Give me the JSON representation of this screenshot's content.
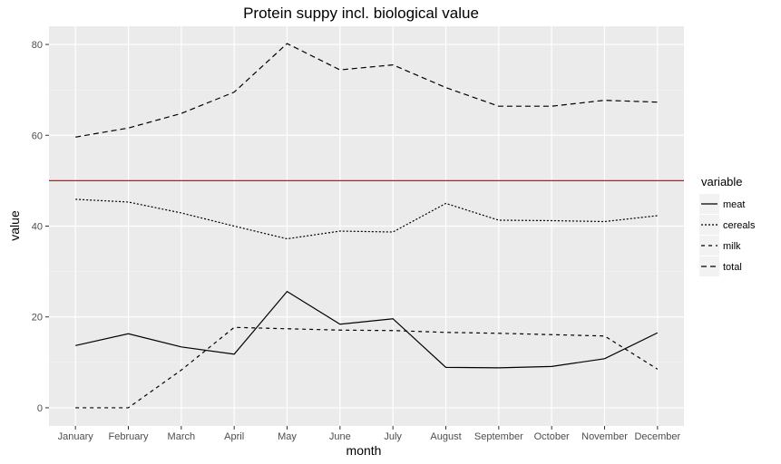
{
  "chart_data": {
    "type": "line",
    "title": "Protein suppy incl. biological value",
    "xlabel": "month",
    "ylabel": "value",
    "categories": [
      "January",
      "February",
      "March",
      "April",
      "May",
      "June",
      "July",
      "August",
      "September",
      "October",
      "November",
      "December"
    ],
    "ylim": [
      -4,
      84
    ],
    "yticks": [
      0,
      20,
      40,
      60,
      80
    ],
    "grid": true,
    "legend": {
      "title": "variable",
      "position": "right"
    },
    "reference_line": {
      "y": 50,
      "color": "#ff0000"
    },
    "series": [
      {
        "name": "meat",
        "dash": "solid",
        "values": [
          13.7,
          16.3,
          13.4,
          11.8,
          25.6,
          18.4,
          19.6,
          8.9,
          8.8,
          9.1,
          10.8,
          16.5
        ]
      },
      {
        "name": "cereals",
        "dash": "dotted",
        "values": [
          45.9,
          45.3,
          42.9,
          40.0,
          37.2,
          38.9,
          38.7,
          45.0,
          41.3,
          41.2,
          41.0,
          42.3
        ]
      },
      {
        "name": "milk",
        "dash": "dashed",
        "values": [
          0.0,
          0.0,
          8.3,
          17.7,
          17.4,
          17.1,
          17.0,
          16.6,
          16.4,
          16.1,
          15.8,
          8.5
        ]
      },
      {
        "name": "total",
        "dash": "longdash",
        "values": [
          59.6,
          61.6,
          64.8,
          69.5,
          80.2,
          74.4,
          75.5,
          70.5,
          66.4,
          66.4,
          67.7,
          67.3
        ]
      }
    ]
  }
}
